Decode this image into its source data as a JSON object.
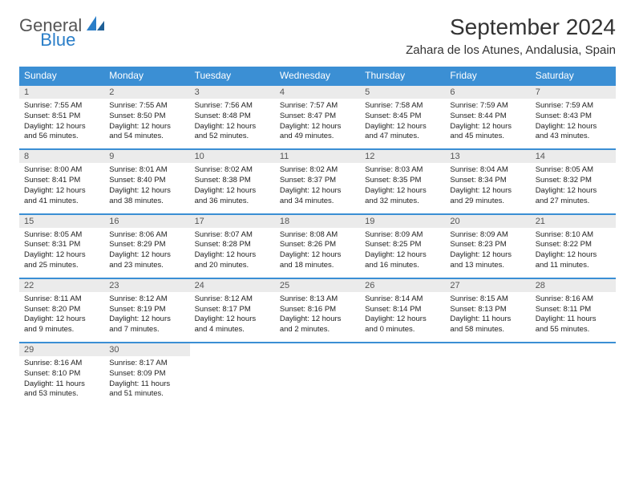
{
  "logo": {
    "word1": "General",
    "word2": "Blue"
  },
  "title": "September 2024",
  "location": "Zahara de los Atunes, Andalusia, Spain",
  "colors": {
    "header_bg": "#3b8fd4",
    "daynum_bg": "#ebebeb",
    "week_border": "#3b8fd4",
    "text": "#222",
    "title": "#333"
  },
  "typography": {
    "title_fontsize": 28,
    "location_fontsize": 15,
    "dow_fontsize": 12,
    "daynum_fontsize": 11,
    "body_fontsize": 9.5
  },
  "dow": [
    "Sunday",
    "Monday",
    "Tuesday",
    "Wednesday",
    "Thursday",
    "Friday",
    "Saturday"
  ],
  "weeks": [
    [
      {
        "n": "1",
        "sr": "Sunrise: 7:55 AM",
        "ss": "Sunset: 8:51 PM",
        "d1": "Daylight: 12 hours",
        "d2": "and 56 minutes."
      },
      {
        "n": "2",
        "sr": "Sunrise: 7:55 AM",
        "ss": "Sunset: 8:50 PM",
        "d1": "Daylight: 12 hours",
        "d2": "and 54 minutes."
      },
      {
        "n": "3",
        "sr": "Sunrise: 7:56 AM",
        "ss": "Sunset: 8:48 PM",
        "d1": "Daylight: 12 hours",
        "d2": "and 52 minutes."
      },
      {
        "n": "4",
        "sr": "Sunrise: 7:57 AM",
        "ss": "Sunset: 8:47 PM",
        "d1": "Daylight: 12 hours",
        "d2": "and 49 minutes."
      },
      {
        "n": "5",
        "sr": "Sunrise: 7:58 AM",
        "ss": "Sunset: 8:45 PM",
        "d1": "Daylight: 12 hours",
        "d2": "and 47 minutes."
      },
      {
        "n": "6",
        "sr": "Sunrise: 7:59 AM",
        "ss": "Sunset: 8:44 PM",
        "d1": "Daylight: 12 hours",
        "d2": "and 45 minutes."
      },
      {
        "n": "7",
        "sr": "Sunrise: 7:59 AM",
        "ss": "Sunset: 8:43 PM",
        "d1": "Daylight: 12 hours",
        "d2": "and 43 minutes."
      }
    ],
    [
      {
        "n": "8",
        "sr": "Sunrise: 8:00 AM",
        "ss": "Sunset: 8:41 PM",
        "d1": "Daylight: 12 hours",
        "d2": "and 41 minutes."
      },
      {
        "n": "9",
        "sr": "Sunrise: 8:01 AM",
        "ss": "Sunset: 8:40 PM",
        "d1": "Daylight: 12 hours",
        "d2": "and 38 minutes."
      },
      {
        "n": "10",
        "sr": "Sunrise: 8:02 AM",
        "ss": "Sunset: 8:38 PM",
        "d1": "Daylight: 12 hours",
        "d2": "and 36 minutes."
      },
      {
        "n": "11",
        "sr": "Sunrise: 8:02 AM",
        "ss": "Sunset: 8:37 PM",
        "d1": "Daylight: 12 hours",
        "d2": "and 34 minutes."
      },
      {
        "n": "12",
        "sr": "Sunrise: 8:03 AM",
        "ss": "Sunset: 8:35 PM",
        "d1": "Daylight: 12 hours",
        "d2": "and 32 minutes."
      },
      {
        "n": "13",
        "sr": "Sunrise: 8:04 AM",
        "ss": "Sunset: 8:34 PM",
        "d1": "Daylight: 12 hours",
        "d2": "and 29 minutes."
      },
      {
        "n": "14",
        "sr": "Sunrise: 8:05 AM",
        "ss": "Sunset: 8:32 PM",
        "d1": "Daylight: 12 hours",
        "d2": "and 27 minutes."
      }
    ],
    [
      {
        "n": "15",
        "sr": "Sunrise: 8:05 AM",
        "ss": "Sunset: 8:31 PM",
        "d1": "Daylight: 12 hours",
        "d2": "and 25 minutes."
      },
      {
        "n": "16",
        "sr": "Sunrise: 8:06 AM",
        "ss": "Sunset: 8:29 PM",
        "d1": "Daylight: 12 hours",
        "d2": "and 23 minutes."
      },
      {
        "n": "17",
        "sr": "Sunrise: 8:07 AM",
        "ss": "Sunset: 8:28 PM",
        "d1": "Daylight: 12 hours",
        "d2": "and 20 minutes."
      },
      {
        "n": "18",
        "sr": "Sunrise: 8:08 AM",
        "ss": "Sunset: 8:26 PM",
        "d1": "Daylight: 12 hours",
        "d2": "and 18 minutes."
      },
      {
        "n": "19",
        "sr": "Sunrise: 8:09 AM",
        "ss": "Sunset: 8:25 PM",
        "d1": "Daylight: 12 hours",
        "d2": "and 16 minutes."
      },
      {
        "n": "20",
        "sr": "Sunrise: 8:09 AM",
        "ss": "Sunset: 8:23 PM",
        "d1": "Daylight: 12 hours",
        "d2": "and 13 minutes."
      },
      {
        "n": "21",
        "sr": "Sunrise: 8:10 AM",
        "ss": "Sunset: 8:22 PM",
        "d1": "Daylight: 12 hours",
        "d2": "and 11 minutes."
      }
    ],
    [
      {
        "n": "22",
        "sr": "Sunrise: 8:11 AM",
        "ss": "Sunset: 8:20 PM",
        "d1": "Daylight: 12 hours",
        "d2": "and 9 minutes."
      },
      {
        "n": "23",
        "sr": "Sunrise: 8:12 AM",
        "ss": "Sunset: 8:19 PM",
        "d1": "Daylight: 12 hours",
        "d2": "and 7 minutes."
      },
      {
        "n": "24",
        "sr": "Sunrise: 8:12 AM",
        "ss": "Sunset: 8:17 PM",
        "d1": "Daylight: 12 hours",
        "d2": "and 4 minutes."
      },
      {
        "n": "25",
        "sr": "Sunrise: 8:13 AM",
        "ss": "Sunset: 8:16 PM",
        "d1": "Daylight: 12 hours",
        "d2": "and 2 minutes."
      },
      {
        "n": "26",
        "sr": "Sunrise: 8:14 AM",
        "ss": "Sunset: 8:14 PM",
        "d1": "Daylight: 12 hours",
        "d2": "and 0 minutes."
      },
      {
        "n": "27",
        "sr": "Sunrise: 8:15 AM",
        "ss": "Sunset: 8:13 PM",
        "d1": "Daylight: 11 hours",
        "d2": "and 58 minutes."
      },
      {
        "n": "28",
        "sr": "Sunrise: 8:16 AM",
        "ss": "Sunset: 8:11 PM",
        "d1": "Daylight: 11 hours",
        "d2": "and 55 minutes."
      }
    ],
    [
      {
        "n": "29",
        "sr": "Sunrise: 8:16 AM",
        "ss": "Sunset: 8:10 PM",
        "d1": "Daylight: 11 hours",
        "d2": "and 53 minutes."
      },
      {
        "n": "30",
        "sr": "Sunrise: 8:17 AM",
        "ss": "Sunset: 8:09 PM",
        "d1": "Daylight: 11 hours",
        "d2": "and 51 minutes."
      },
      null,
      null,
      null,
      null,
      null
    ]
  ]
}
